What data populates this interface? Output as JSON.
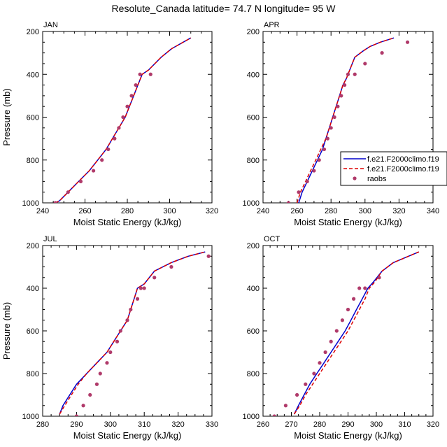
{
  "title": "Resolute_Canada  latitude= 74.7 N longitude= 95 W",
  "legend": {
    "entries": [
      {
        "label": "f.e21.F2000climo.f19",
        "color": "#0000cc",
        "style": "solid"
      },
      {
        "label": "f.e21.F2000climo.f19",
        "color": "#dd0000",
        "style": "dashed"
      },
      {
        "label": "raobs",
        "color": "#b03a6a",
        "style": "marker"
      }
    ]
  },
  "chart_data": [
    {
      "type": "line",
      "panel_label": "JAN",
      "xlabel": "Moist Static Energy (kJ/kg)",
      "ylabel": "Pressure (mb)",
      "xlim": [
        240,
        320
      ],
      "ylim": [
        1000,
        200
      ],
      "xticks": [
        240,
        260,
        280,
        300,
        320
      ],
      "yticks": [
        200,
        400,
        600,
        800,
        1000
      ],
      "y_inverted": true,
      "series": [
        {
          "color": "#0000cc",
          "style": "solid",
          "x": [
            246,
            248,
            252,
            257,
            262,
            266,
            270,
            273,
            276,
            279,
            281,
            283,
            285,
            287,
            290,
            296,
            301,
            310
          ],
          "y": [
            1000,
            990,
            950,
            900,
            850,
            800,
            750,
            700,
            650,
            600,
            550,
            500,
            450,
            400,
            380,
            320,
            280,
            230
          ]
        },
        {
          "color": "#dd0000",
          "style": "dashed",
          "x": [
            246,
            248,
            252,
            257,
            262,
            266,
            270,
            273,
            276,
            279,
            281,
            283,
            285,
            287,
            290,
            296,
            301,
            310
          ],
          "y": [
            1000,
            990,
            950,
            900,
            850,
            800,
            750,
            700,
            650,
            600,
            550,
            500,
            450,
            400,
            380,
            320,
            280,
            230
          ]
        },
        {
          "color": "#b03a6a",
          "style": "marker",
          "x": [
            246,
            252,
            258,
            264,
            268,
            271,
            274,
            276,
            278,
            280,
            282,
            284,
            286,
            291
          ],
          "y": [
            1000,
            950,
            900,
            850,
            800,
            750,
            700,
            650,
            600,
            550,
            500,
            450,
            400,
            400
          ]
        }
      ]
    },
    {
      "type": "line",
      "panel_label": "APR",
      "xlabel": "Moist Static Energy (kJ/kg)",
      "ylabel": "",
      "xlim": [
        240,
        340
      ],
      "ylim": [
        1000,
        200
      ],
      "xticks": [
        240,
        260,
        280,
        300,
        320,
        340
      ],
      "yticks": [
        200,
        400,
        600,
        800,
        1000
      ],
      "y_inverted": true,
      "series": [
        {
          "color": "#0000cc",
          "style": "solid",
          "x": [
            261,
            263,
            266,
            269,
            272,
            275,
            277,
            279,
            281,
            283,
            285,
            287,
            289,
            291,
            294,
            299,
            303,
            309,
            317
          ],
          "y": [
            1000,
            950,
            900,
            850,
            800,
            750,
            700,
            650,
            600,
            550,
            500,
            450,
            420,
            380,
            320,
            290,
            270,
            250,
            230
          ]
        },
        {
          "color": "#dd0000",
          "style": "dashed",
          "x": [
            260,
            262,
            265,
            268,
            271,
            274,
            277,
            279,
            281,
            283,
            285,
            287,
            289,
            291,
            294,
            299,
            303,
            309,
            317
          ],
          "y": [
            1000,
            950,
            900,
            850,
            800,
            750,
            700,
            650,
            600,
            550,
            500,
            450,
            420,
            380,
            320,
            290,
            270,
            250,
            230
          ]
        },
        {
          "color": "#b03a6a",
          "style": "marker",
          "x": [
            255,
            261,
            266,
            270,
            273,
            276,
            278,
            280,
            282,
            284,
            286,
            288,
            290,
            294,
            300,
            310,
            325
          ],
          "y": [
            1000,
            950,
            900,
            850,
            800,
            750,
            700,
            650,
            600,
            550,
            500,
            450,
            400,
            400,
            350,
            300,
            250
          ]
        }
      ]
    },
    {
      "type": "line",
      "panel_label": "JUL",
      "xlabel": "Moist Static Energy (kJ/kg)",
      "ylabel": "Pressure (mb)",
      "xlim": [
        280,
        330
      ],
      "ylim": [
        1000,
        200
      ],
      "xticks": [
        280,
        290,
        300,
        310,
        320,
        330
      ],
      "yticks": [
        200,
        400,
        600,
        800,
        1000
      ],
      "y_inverted": true,
      "series": [
        {
          "color": "#0000cc",
          "style": "solid",
          "x": [
            285,
            286,
            288,
            290,
            293,
            296,
            299,
            301,
            303,
            305,
            306,
            307,
            308,
            310,
            313,
            318,
            323,
            328
          ],
          "y": [
            990,
            950,
            900,
            850,
            800,
            750,
            700,
            650,
            600,
            550,
            500,
            450,
            400,
            380,
            320,
            280,
            250,
            230
          ]
        },
        {
          "color": "#dd0000",
          "style": "dashed",
          "x": [
            285,
            286.5,
            288.5,
            290.5,
            293,
            296,
            299,
            301,
            303,
            305,
            306,
            307,
            308,
            310,
            313,
            318,
            323,
            328
          ],
          "y": [
            990,
            950,
            900,
            850,
            800,
            750,
            700,
            650,
            600,
            550,
            500,
            450,
            400,
            380,
            320,
            280,
            250,
            230
          ]
        },
        {
          "color": "#b03a6a",
          "style": "marker",
          "x": [
            290,
            292,
            294,
            296,
            297,
            299,
            300,
            302,
            303,
            305,
            306,
            308,
            309,
            310,
            313,
            318,
            329
          ],
          "y": [
            1000,
            950,
            900,
            850,
            800,
            750,
            700,
            650,
            600,
            550,
            500,
            450,
            400,
            400,
            350,
            300,
            250
          ]
        }
      ]
    },
    {
      "type": "line",
      "panel_label": "OCT",
      "xlabel": "Moist Static Energy (kJ/kg)",
      "ylabel": "",
      "xlim": [
        260,
        320
      ],
      "ylim": [
        1000,
        200
      ],
      "xticks": [
        260,
        270,
        280,
        290,
        300,
        310,
        320
      ],
      "yticks": [
        200,
        400,
        600,
        800,
        1000
      ],
      "y_inverted": true,
      "series": [
        {
          "color": "#0000cc",
          "style": "solid",
          "x": [
            271,
            272.5,
            274.5,
            276.5,
            279,
            281.5,
            284,
            286.5,
            289,
            291,
            293,
            295,
            297,
            299,
            302,
            306,
            315
          ],
          "y": [
            990,
            950,
            900,
            850,
            800,
            750,
            700,
            650,
            600,
            550,
            500,
            450,
            400,
            370,
            320,
            280,
            230
          ]
        },
        {
          "color": "#dd0000",
          "style": "dashed",
          "x": [
            271,
            273,
            275,
            277.5,
            280,
            282.5,
            285,
            287.5,
            290,
            292,
            294,
            296,
            297.5,
            299.5,
            302,
            306,
            315
          ],
          "y": [
            990,
            950,
            900,
            850,
            800,
            750,
            700,
            650,
            600,
            550,
            500,
            450,
            400,
            370,
            320,
            280,
            230
          ]
        },
        {
          "color": "#b03a6a",
          "style": "marker",
          "x": [
            264,
            268,
            272,
            275,
            278,
            280,
            282,
            284,
            286,
            288,
            290,
            292,
            294,
            296,
            301
          ],
          "y": [
            1000,
            950,
            900,
            850,
            800,
            750,
            700,
            650,
            600,
            550,
            500,
            450,
            400,
            400,
            350
          ]
        }
      ]
    }
  ]
}
